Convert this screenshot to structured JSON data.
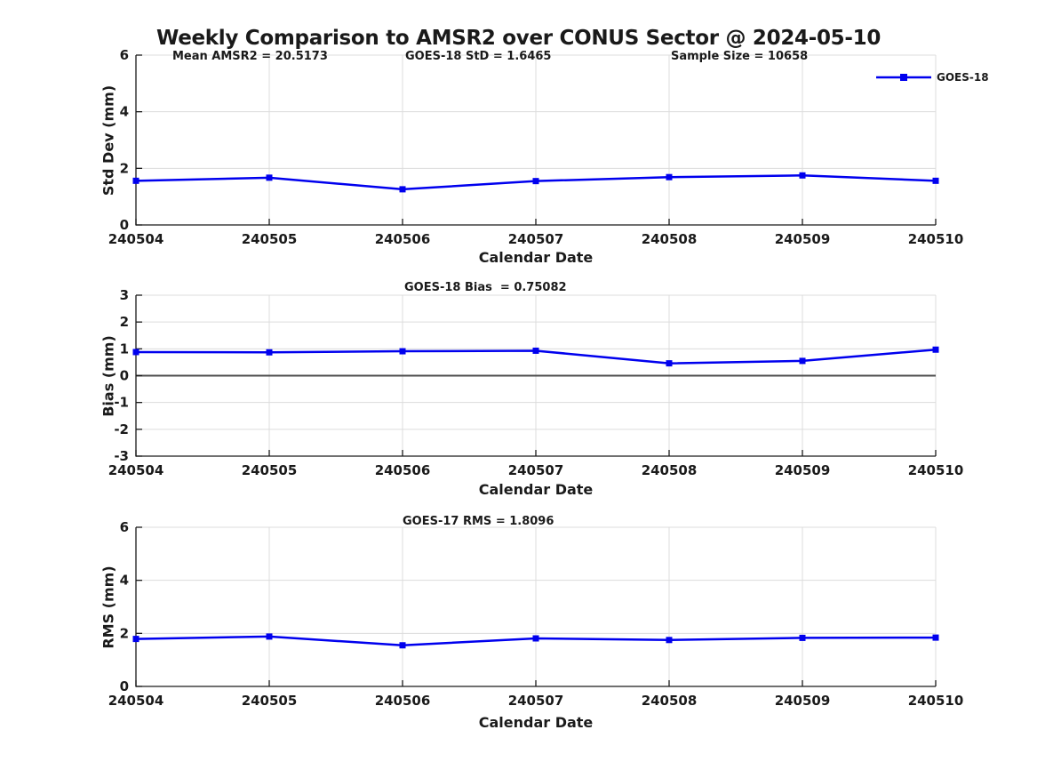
{
  "figure_title": "Weekly Comparison to AMSR2 over CONUS Sector @ 2024-05-10",
  "colors": {
    "series_blue": "#0000EE",
    "grid": "#dcdcdc",
    "axis": "#1a1a1a",
    "zero_line": "#4d4d4d",
    "background": "#ffffff"
  },
  "chart_data": [
    {
      "type": "line",
      "annotations": [
        "Mean AMSR2 = 20.5173",
        "GOES-18 StD = 1.6465",
        "Sample Size = 10658"
      ],
      "categories": [
        "240504",
        "240505",
        "240506",
        "240507",
        "240508",
        "240509",
        "240510"
      ],
      "series": [
        {
          "name": "GOES-18",
          "color": "#0000EE",
          "marker": "square",
          "values": [
            1.56,
            1.67,
            1.26,
            1.55,
            1.69,
            1.75,
            1.56
          ]
        }
      ],
      "xlabel": "Calendar Date",
      "ylabel": "Std Dev (mm)",
      "ylim": [
        0,
        6
      ],
      "yticks": [
        0,
        2,
        4,
        6
      ],
      "grid": true,
      "legend": {
        "label": "GOES-18",
        "position": "top-right-outside"
      }
    },
    {
      "type": "line",
      "annotations": [
        "GOES-18 Bias  = 0.75082"
      ],
      "categories": [
        "240504",
        "240505",
        "240506",
        "240507",
        "240508",
        "240509",
        "240510"
      ],
      "series": [
        {
          "name": "GOES-18",
          "color": "#0000EE",
          "marker": "square",
          "values": [
            0.88,
            0.87,
            0.91,
            0.93,
            0.46,
            0.55,
            0.97
          ]
        }
      ],
      "xlabel": "Calendar Date",
      "ylabel": "Bias (mm)",
      "ylim": [
        -3,
        3
      ],
      "yticks": [
        -3,
        -2,
        -1,
        0,
        1,
        2,
        3
      ],
      "zero_line": true,
      "grid": true
    },
    {
      "type": "line",
      "annotations": [
        "GOES-17 RMS = 1.8096"
      ],
      "categories": [
        "240504",
        "240505",
        "240506",
        "240507",
        "240508",
        "240509",
        "240510"
      ],
      "series": [
        {
          "name": "GOES-18",
          "color": "#0000EE",
          "marker": "square",
          "values": [
            1.79,
            1.88,
            1.55,
            1.81,
            1.75,
            1.83,
            1.84
          ]
        }
      ],
      "xlabel": "Calendar Date",
      "ylabel": "RMS (mm)",
      "ylim": [
        0,
        6
      ],
      "yticks": [
        0,
        2,
        4,
        6
      ],
      "grid": true
    }
  ]
}
